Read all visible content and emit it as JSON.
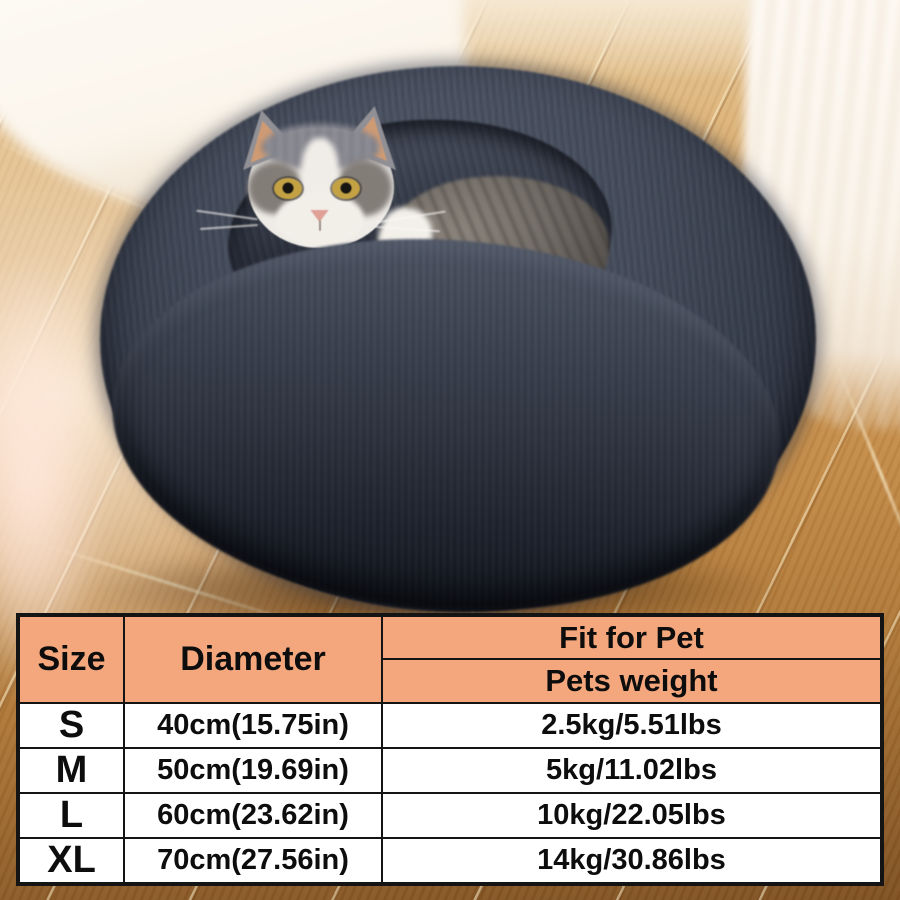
{
  "photo": {
    "description": "Grey-and-white cat resting inside a dark grey plush donut-shaped pet bed on a wooden floor with white sheer curtains behind",
    "subject": "cat in donut pet bed",
    "colors": {
      "bed_plush": "#3e4553",
      "bed_shadow_core": "#161a23",
      "floor_wood": "#cf9a58",
      "curtain": "#fbf5ec",
      "cat_eye_amber": "#c4a243",
      "cat_nose_pink": "#e0a096",
      "cat_fur_gray": "#8b8b92",
      "cat_fur_white": "#f2efe9",
      "ear_inner_tan": "#cf9b74"
    }
  },
  "size_table": {
    "colors": {
      "header_bg": "#f4a77d",
      "row_bg": "#ffffff",
      "border": "#141414",
      "text": "#0d0d0d"
    },
    "header": {
      "size": "Size",
      "diameter": "Diameter",
      "fit_for_pet": "Fit for Pet",
      "pets_weight": "Pets weight"
    },
    "rows": [
      {
        "size": "S",
        "diameter": "40cm(15.75in)",
        "weight": "2.5kg/5.51lbs"
      },
      {
        "size": "M",
        "diameter": "50cm(19.69in)",
        "weight": "5kg/11.02lbs"
      },
      {
        "size": "L",
        "diameter": "60cm(23.62in)",
        "weight": "10kg/22.05lbs"
      },
      {
        "size": "XL",
        "diameter": "70cm(27.56in)",
        "weight": "14kg/30.86lbs"
      }
    ]
  }
}
